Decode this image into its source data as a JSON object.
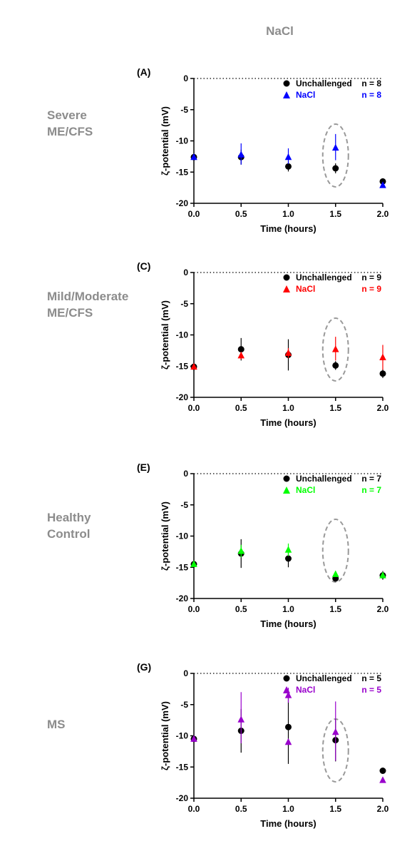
{
  "figure_title": "NaCl",
  "chart_data": [
    {
      "type": "scatter",
      "panel_label": "(A)",
      "row_label": "Severe\nME/CFS",
      "xlabel": "Time (hours)",
      "ylabel": "ζ-potential (mV)",
      "xlim": [
        0,
        2
      ],
      "ylim": [
        -20,
        0
      ],
      "xticks": [
        "0.0",
        "0.5",
        "1.0",
        "1.5",
        "2.0"
      ],
      "yticks": [
        "0",
        "-5",
        "-10",
        "-15",
        "-20"
      ],
      "reference_line_y": 0,
      "highlight_x": 1.5,
      "series": [
        {
          "name": "Unchallenged",
          "n_label": "n = 8",
          "marker": "circle",
          "color": "#000000",
          "x": [
            0,
            0.5,
            1.0,
            1.5,
            2.0
          ],
          "y": [
            -12.6,
            -12.6,
            -14.1,
            -14.4,
            -16.5
          ],
          "err_lo": [
            0.5,
            1.2,
            0.8,
            0.8,
            0.4
          ],
          "err_hi": [
            0.5,
            1.2,
            0.8,
            0.8,
            0.4
          ]
        },
        {
          "name": "NaCl",
          "n_label": "n = 8",
          "marker": "triangle",
          "color": "#0000ff",
          "x": [
            0,
            0.5,
            1.0,
            1.5,
            2.0
          ],
          "y": [
            -12.6,
            -12.2,
            -12.6,
            -11.1,
            -17.1
          ],
          "err_lo": [
            0.4,
            1.6,
            1.1,
            2.0,
            0.3
          ],
          "err_hi": [
            0.4,
            1.8,
            1.4,
            2.2,
            0.3
          ]
        }
      ]
    },
    {
      "type": "scatter",
      "panel_label": "(C)",
      "row_label": "Mild/Moderate\nME/CFS",
      "xlabel": "Time (hours)",
      "ylabel": "ζ-potential (mV)",
      "xlim": [
        0,
        2
      ],
      "ylim": [
        -20,
        0
      ],
      "xticks": [
        "0.0",
        "0.5",
        "1.0",
        "1.5",
        "2.0"
      ],
      "yticks": [
        "0",
        "-5",
        "-10",
        "-15",
        "-20"
      ],
      "reference_line_y": 0,
      "highlight_x": 1.5,
      "series": [
        {
          "name": "Unchallenged",
          "n_label": "n = 9",
          "marker": "circle",
          "color": "#000000",
          "x": [
            0,
            0.5,
            1.0,
            1.5,
            2.0
          ],
          "y": [
            -15.1,
            -12.3,
            -13.2,
            -14.9,
            -16.2
          ],
          "err_lo": [
            0.3,
            1.8,
            2.5,
            0.7,
            0.7
          ],
          "err_hi": [
            0.3,
            1.8,
            2.5,
            0.7,
            0.7
          ]
        },
        {
          "name": "NaCl",
          "n_label": "n = 9",
          "marker": "triangle",
          "color": "#ff0000",
          "x": [
            0,
            0.5,
            1.0,
            1.5,
            2.0
          ],
          "y": [
            -15.1,
            -13.3,
            -12.9,
            -12.3,
            -13.6
          ],
          "err_lo": [
            0.3,
            0.6,
            0.8,
            1.8,
            2.0
          ],
          "err_hi": [
            0.3,
            0.6,
            0.8,
            2.0,
            2.0
          ]
        }
      ]
    },
    {
      "type": "scatter",
      "panel_label": "(E)",
      "row_label": "Healthy\nControl",
      "xlabel": "Time (hours)",
      "ylabel": "ζ-potential (mV)",
      "xlim": [
        0,
        2
      ],
      "ylim": [
        -20,
        0
      ],
      "xticks": [
        "0.0",
        "0.5",
        "1.0",
        "1.5",
        "2.0"
      ],
      "yticks": [
        "0",
        "-5",
        "-10",
        "-15",
        "-20"
      ],
      "reference_line_y": 0,
      "highlight_x": 1.5,
      "series": [
        {
          "name": "Unchallenged",
          "n_label": "n = 7",
          "marker": "circle",
          "color": "#000000",
          "x": [
            0,
            0.5,
            1.0,
            1.5,
            2.0
          ],
          "y": [
            -14.5,
            -12.8,
            -13.6,
            -16.8,
            -16.3
          ],
          "err_lo": [
            0.3,
            2.3,
            1.4,
            0.3,
            0.7
          ],
          "err_hi": [
            0.3,
            2.3,
            1.4,
            0.3,
            0.7
          ]
        },
        {
          "name": "NaCl",
          "n_label": "n = 7",
          "marker": "triangle",
          "color": "#00ff00",
          "x": [
            0,
            0.5,
            1.0,
            1.5,
            2.0
          ],
          "y": [
            -14.5,
            -12.4,
            -12.2,
            -16.1,
            -16.3
          ],
          "err_lo": [
            0.3,
            1.0,
            1.0,
            0.3,
            0.3
          ],
          "err_hi": [
            0.3,
            1.0,
            1.0,
            0.3,
            0.3
          ]
        }
      ]
    },
    {
      "type": "scatter",
      "panel_label": "(G)",
      "row_label": "MS",
      "xlabel": "Time (hours)",
      "ylabel": "ζ-potential (mV)",
      "xlim": [
        0,
        2
      ],
      "ylim": [
        -20,
        0
      ],
      "xticks": [
        "0.0",
        "0.5",
        "1.0",
        "1.5",
        "2.0"
      ],
      "yticks": [
        "0",
        "-5",
        "-10",
        "-15",
        "-20"
      ],
      "reference_line_y": 0,
      "highlight_x": 1.5,
      "series": [
        {
          "name": "Unchallenged",
          "n_label": "n = 5",
          "marker": "circle",
          "color": "#000000",
          "x": [
            0,
            0.5,
            1.0,
            1.5,
            2.0
          ],
          "y": [
            -10.5,
            -9.2,
            -8.6,
            -10.7,
            -15.6
          ],
          "err_lo": [
            0.3,
            3.5,
            5.9,
            3.4,
            0.3
          ],
          "err_hi": [
            0.3,
            3.5,
            5.9,
            3.4,
            0.3
          ]
        },
        {
          "name": "NaCl",
          "n_label": "n = 5",
          "marker": "triangle",
          "color": "#9900cc",
          "x": [
            0,
            0.5,
            1.0,
            1.5,
            2.0,
            1.0
          ],
          "y": [
            -10.5,
            -7.4,
            -3.5,
            -9.4,
            -17.1,
            -11.0
          ],
          "err_lo": [
            0.3,
            3.8,
            1.2,
            4.6,
            0.3,
            0.3
          ],
          "err_hi": [
            0.3,
            4.4,
            1.2,
            4.9,
            0.3,
            0.3
          ]
        }
      ]
    }
  ]
}
